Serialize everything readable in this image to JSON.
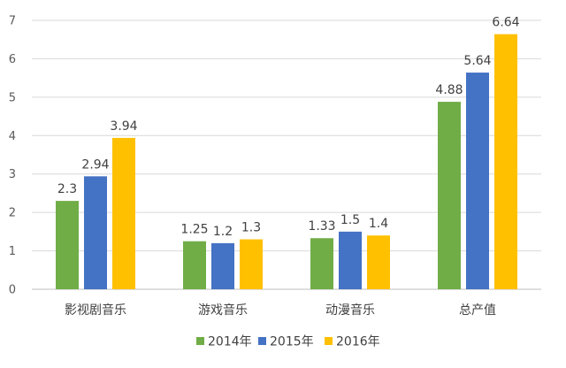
{
  "chart_data": {
    "type": "bar",
    "title": "",
    "xlabel": "",
    "ylabel": "",
    "ylim": [
      0,
      7
    ],
    "yticks": [
      0,
      1,
      2,
      3,
      4,
      5,
      6,
      7
    ],
    "grid": true,
    "legend_position": "bottom",
    "categories": [
      "影视剧音乐",
      "游戏音乐",
      "动漫音乐",
      "总产值"
    ],
    "series": [
      {
        "name": "2014年",
        "color": "#70AD47",
        "values": [
          2.3,
          1.25,
          1.33,
          4.88
        ],
        "labels": [
          "2.3",
          "1.25",
          "1.33",
          "4.88"
        ]
      },
      {
        "name": "2015年",
        "color": "#4472C4",
        "values": [
          2.94,
          1.2,
          1.5,
          5.64
        ],
        "labels": [
          "2.94",
          "1.2",
          "1.5",
          "5.64"
        ]
      },
      {
        "name": "2016年",
        "color": "#FFC000",
        "values": [
          3.94,
          1.3,
          1.4,
          6.64
        ],
        "labels": [
          "3.94",
          "1.3",
          "1.4",
          "6.64"
        ]
      }
    ]
  },
  "colors": {
    "gridline": "#D9D9D9",
    "axis": "#BFBFBF"
  }
}
